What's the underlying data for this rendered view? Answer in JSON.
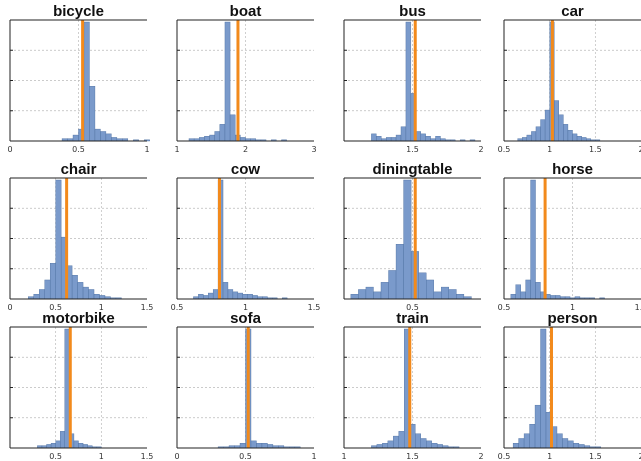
{
  "colors": {
    "bar": "#7a9acb",
    "vline": "#f28a1c"
  },
  "chart_data": [
    {
      "type": "bar",
      "title": "bicycle",
      "xlim": [
        0,
        1
      ],
      "xticks": [
        {
          "v": 0,
          "label": "0"
        },
        {
          "v": 0.5,
          "label": "0.5"
        },
        {
          "v": 1,
          "label": "1"
        }
      ],
      "bin_start": 0.3,
      "bin_width": 0.04,
      "values": [
        0,
        0,
        2,
        2,
        5,
        10,
        100,
        46,
        10,
        8,
        6,
        3,
        2,
        2,
        0,
        1,
        0,
        1
      ],
      "vline": 0.53,
      "grid": true
    },
    {
      "type": "bar",
      "title": "boat",
      "xlim": [
        1,
        3
      ],
      "xticks": [
        {
          "v": 1,
          "label": "1"
        },
        {
          "v": 2,
          "label": "2"
        },
        {
          "v": 3,
          "label": "3"
        }
      ],
      "bin_start": 1.1,
      "bin_width": 0.075,
      "values": [
        0,
        2,
        2,
        3,
        4,
        5,
        8,
        14,
        100,
        22,
        5,
        3,
        2,
        2,
        1,
        1,
        0,
        1,
        0,
        1
      ],
      "vline": 1.89,
      "grid": true
    },
    {
      "type": "bar",
      "title": "bus",
      "xlim": [
        1,
        2
      ],
      "xticks": [
        {
          "v": 1.5,
          "label": "1.5"
        },
        {
          "v": 2,
          "label": "2"
        }
      ],
      "bin_start": 1.2,
      "bin_width": 0.036,
      "values": [
        6,
        4,
        2,
        3,
        3,
        5,
        12,
        100,
        40,
        8,
        6,
        4,
        2,
        4,
        2,
        1,
        1,
        0,
        1,
        0,
        1
      ],
      "vline": 1.52,
      "grid": true
    },
    {
      "type": "bar",
      "title": "car",
      "xlim": [
        0.5,
        2
      ],
      "xticks": [
        {
          "v": 0.5,
          "label": "0.5"
        },
        {
          "v": 1,
          "label": "1"
        },
        {
          "v": 1.5,
          "label": "1.5"
        },
        {
          "v": 2,
          "label": "2"
        }
      ],
      "bin_start": 0.65,
      "bin_width": 0.05,
      "values": [
        2,
        3,
        5,
        8,
        12,
        18,
        26,
        100,
        34,
        22,
        14,
        9,
        6,
        4,
        3,
        2,
        1,
        1
      ],
      "vline": 1.03,
      "grid": true
    },
    {
      "type": "bar",
      "title": "chair",
      "xlim": [
        0,
        1.5
      ],
      "xticks": [
        {
          "v": 0,
          "label": "0"
        },
        {
          "v": 0.5,
          "label": "0.5"
        },
        {
          "v": 1,
          "label": "1"
        },
        {
          "v": 1.5,
          "label": "1.5"
        }
      ],
      "bin_start": 0.2,
      "bin_width": 0.06,
      "values": [
        2,
        4,
        8,
        16,
        30,
        100,
        52,
        28,
        20,
        14,
        10,
        8,
        4,
        3,
        2,
        1,
        1
      ],
      "vline": 0.62,
      "grid": true
    },
    {
      "type": "bar",
      "title": "cow",
      "xlim": [
        0.5,
        1.5
      ],
      "xticks": [
        {
          "v": 0.5,
          "label": "0.5"
        },
        {
          "v": 1,
          "label": "1"
        },
        {
          "v": 1.5,
          "label": "1.5"
        }
      ],
      "bin_start": 0.62,
      "bin_width": 0.036,
      "values": [
        2,
        4,
        3,
        5,
        8,
        100,
        14,
        8,
        6,
        5,
        4,
        4,
        3,
        2,
        2,
        1,
        1,
        0,
        1
      ],
      "vline": 0.81,
      "grid": true
    },
    {
      "type": "bar",
      "title": "diningtable",
      "xlim": [
        0,
        1
      ],
      "xticks": [
        {
          "v": 0.5,
          "label": "0.5"
        }
      ],
      "bin_start": 0.05,
      "bin_width": 0.055,
      "values": [
        4,
        8,
        10,
        6,
        14,
        24,
        46,
        100,
        40,
        22,
        16,
        6,
        10,
        8,
        4,
        2
      ],
      "vline": 0.52,
      "grid": true
    },
    {
      "type": "bar",
      "title": "horse",
      "xlim": [
        0.5,
        1.5
      ],
      "xticks": [
        {
          "v": 0.5,
          "label": "0.5"
        },
        {
          "v": 1,
          "label": "1"
        },
        {
          "v": 1.5,
          "label": "1.5"
        }
      ],
      "bin_start": 0.55,
      "bin_width": 0.036,
      "values": [
        4,
        12,
        6,
        16,
        100,
        14,
        6,
        4,
        3,
        3,
        2,
        2,
        1,
        2,
        1,
        1,
        1,
        0,
        1
      ],
      "vline": 0.8,
      "grid": true
    },
    {
      "type": "bar",
      "title": "motorbike",
      "xlim": [
        0,
        1.5
      ],
      "xticks": [
        {
          "v": 0.5,
          "label": "0.5"
        },
        {
          "v": 1,
          "label": "1"
        },
        {
          "v": 1.5,
          "label": "1.5"
        }
      ],
      "bin_start": 0.3,
      "bin_width": 0.05,
      "values": [
        2,
        2,
        3,
        4,
        6,
        14,
        100,
        12,
        6,
        4,
        3,
        2,
        1,
        1
      ],
      "vline": 0.66,
      "grid": true
    },
    {
      "type": "bar",
      "title": "sofa",
      "xlim": [
        0,
        1
      ],
      "xticks": [
        {
          "v": 0,
          "label": "0"
        },
        {
          "v": 0.5,
          "label": "0.5"
        },
        {
          "v": 1,
          "label": "1"
        }
      ],
      "bin_start": 0.3,
      "bin_width": 0.04,
      "values": [
        1,
        1,
        2,
        2,
        4,
        100,
        6,
        4,
        4,
        3,
        2,
        2,
        1,
        1,
        1
      ],
      "vline": 0.52,
      "grid": true
    },
    {
      "type": "bar",
      "title": "train",
      "xlim": [
        1,
        2
      ],
      "xticks": [
        {
          "v": 1,
          "label": "1"
        },
        {
          "v": 1.5,
          "label": "1.5"
        },
        {
          "v": 2,
          "label": "2"
        }
      ],
      "bin_start": 1.2,
      "bin_width": 0.04,
      "values": [
        2,
        3,
        4,
        6,
        10,
        14,
        100,
        20,
        12,
        8,
        6,
        4,
        3,
        2,
        1,
        1
      ],
      "vline": 1.48,
      "grid": true
    },
    {
      "type": "bar",
      "title": "person",
      "xlim": [
        0.5,
        2
      ],
      "xticks": [
        {
          "v": 0.5,
          "label": "0.5"
        },
        {
          "v": 1,
          "label": "1"
        },
        {
          "v": 1.5,
          "label": "1.5"
        },
        {
          "v": 2,
          "label": "2"
        }
      ],
      "bin_start": 0.6,
      "bin_width": 0.06,
      "values": [
        4,
        8,
        12,
        20,
        36,
        100,
        30,
        18,
        12,
        8,
        6,
        4,
        3,
        2,
        1,
        1
      ],
      "vline": 1.02,
      "grid": true
    }
  ]
}
